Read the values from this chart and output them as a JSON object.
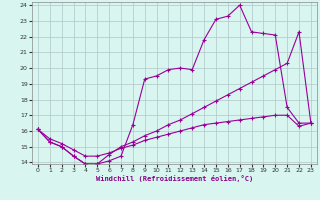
{
  "xlabel": "Windchill (Refroidissement éolien,°C)",
  "bg_color": "#d8f5f0",
  "line_color": "#990099",
  "grid_color": "#b0c8c8",
  "xlim": [
    -0.5,
    23.5
  ],
  "ylim": [
    13.9,
    24.2
  ],
  "yticks": [
    14,
    15,
    16,
    17,
    18,
    19,
    20,
    21,
    22,
    23,
    24
  ],
  "xticks": [
    0,
    1,
    2,
    3,
    4,
    5,
    6,
    7,
    8,
    9,
    10,
    11,
    12,
    13,
    14,
    15,
    16,
    17,
    18,
    19,
    20,
    21,
    22,
    23
  ],
  "s1_x": [
    0,
    1,
    2,
    3,
    4,
    5,
    6,
    7,
    8,
    9,
    10,
    11,
    12,
    13,
    14,
    15,
    16,
    17,
    18,
    19,
    20,
    21,
    22,
    23
  ],
  "s1_y": [
    16.1,
    15.3,
    15.0,
    14.4,
    13.9,
    13.9,
    14.1,
    14.4,
    16.4,
    19.3,
    19.5,
    19.9,
    20.0,
    19.9,
    21.8,
    23.1,
    23.3,
    24.0,
    22.3,
    22.2,
    22.1,
    17.5,
    16.5,
    16.5
  ],
  "s2_x": [
    0,
    1,
    2,
    3,
    4,
    5,
    6,
    7,
    8,
    9,
    10,
    11,
    12,
    13,
    14,
    15,
    16,
    17,
    18,
    19,
    20,
    21,
    22,
    23
  ],
  "s2_y": [
    16.1,
    15.3,
    15.0,
    14.4,
    13.9,
    13.9,
    14.5,
    15.0,
    15.3,
    15.7,
    16.0,
    16.4,
    16.7,
    17.1,
    17.5,
    17.9,
    18.3,
    18.7,
    19.1,
    19.5,
    19.9,
    20.3,
    22.3,
    16.5
  ],
  "s3_x": [
    0,
    1,
    2,
    3,
    4,
    5,
    6,
    7,
    8,
    9,
    10,
    11,
    12,
    13,
    14,
    15,
    16,
    17,
    18,
    19,
    20,
    21,
    22,
    23
  ],
  "s3_y": [
    16.1,
    15.5,
    15.2,
    14.8,
    14.4,
    14.4,
    14.6,
    14.9,
    15.1,
    15.4,
    15.6,
    15.8,
    16.0,
    16.2,
    16.4,
    16.5,
    16.6,
    16.7,
    16.8,
    16.9,
    17.0,
    17.0,
    16.3,
    16.5
  ]
}
